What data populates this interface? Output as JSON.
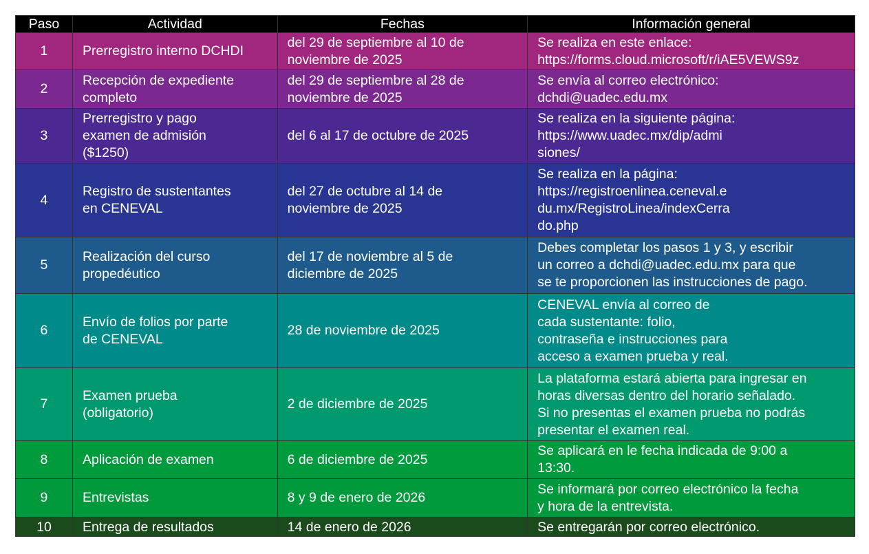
{
  "headers": [
    "Paso",
    "Actividad",
    "Fechas",
    "Información general"
  ],
  "rows": [
    {
      "paso": "1",
      "actividad": "Prerregistro interno DCHDI",
      "fechas": "del 29 de septiembre al 10 de\nnoviembre de 2025",
      "info": "Se realiza en este enlace:\nhttps://forms.cloud.microsoft/r/iAE5VEWS9z",
      "color": "#a0267e"
    },
    {
      "paso": "2",
      "actividad": "Recepción de expediente\ncompleto",
      "fechas": "del 29 de septiembre al 28 de\nnoviembre de 2025",
      "info": "Se envía al correo electrónico:\ndchdi@uadec.edu.mx",
      "color": "#7b2890"
    },
    {
      "paso": "3",
      "actividad": "Prerregistro y pago\nexamen de admisión\n($1250)",
      "fechas": "del 6 al 17 de octubre de 2025",
      "info": "Se realiza en la siguiente página:\nhttps://www.uadec.mx/dip/admi\nsiones/",
      "color": "#4b2892"
    },
    {
      "paso": "4",
      "actividad": "Registro de sustentantes\nen CENEVAL",
      "fechas": "del 27 de octubre al 14 de\nnoviembre de 2025",
      "info": "Se realiza en la página:\nhttps://registroenlinea.ceneval.e\ndu.mx/RegistroLinea/indexCerra\ndo.php",
      "color": "#293592"
    },
    {
      "paso": "5",
      "actividad": "Realización del curso\npropedéutico",
      "fechas": "del 17 de noviembre al 5 de\ndiciembre de 2025",
      "info": "Debes completar los pasos 1 y 3, y escribir\nun correo a dchdi@uadec.edu.mx para que\nse te proporcionen las instrucciones de pago.",
      "color": "#1e5a8c"
    },
    {
      "paso": "6",
      "actividad": "Envío de folios por parte\nde CENEVAL",
      "fechas": "28 de noviembre de 2025",
      "info": "CENEVAL envía al correo de\ncada sustentante: folio,\ncontraseña e instrucciones para\nacceso a examen prueba y real.",
      "color": "#008b8a"
    },
    {
      "paso": "7",
      "actividad": "Examen prueba\n(obligatorio)",
      "fechas": "2 de diciembre de 2025",
      "info": "La plataforma estará abierta para ingresar en\nhoras diversas dentro del horario señalado.\nSi no presentas el examen prueba no podrás\npresentar el examen real.",
      "color": "#009a6e"
    },
    {
      "paso": "8",
      "actividad": "Aplicación de examen",
      "fechas": "6 de diciembre de 2025",
      "info": "Se aplicará en le fecha indicada de 9:00 a\n13:30.",
      "color": "#009b3d"
    },
    {
      "paso": "9",
      "actividad": "Entrevistas",
      "fechas": "8 y 9 de enero de 2026",
      "info": "Se informará por correo electrónico la fecha\ny hora de la entrevista.",
      "color": "#009a3c"
    },
    {
      "paso": "10",
      "actividad": "Entrega de resultados",
      "fechas": "14 de enero de 2026",
      "info": "Se entregarán por correo electrónico.",
      "color": "#1b4a1c"
    }
  ]
}
